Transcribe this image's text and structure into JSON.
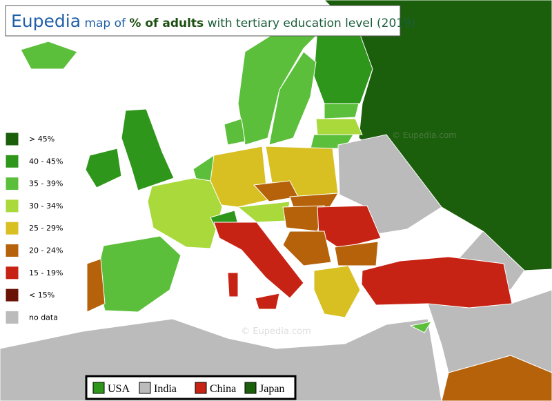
{
  "header": {
    "brand": "Eupedia",
    "title_pre": "map of",
    "title_bold": "% of adults",
    "title_post": "with tertiary education level (2019)"
  },
  "legend": {
    "items": [
      {
        "label": "> 45%",
        "color": "#1b5e0c"
      },
      {
        "label": "40 - 45%",
        "color": "#2e961a"
      },
      {
        "label": "35 - 39%",
        "color": "#5cbf3c"
      },
      {
        "label": "30 - 34%",
        "color": "#a9d93a"
      },
      {
        "label": "25 - 29%",
        "color": "#d8c023"
      },
      {
        "label": "20 - 24%",
        "color": "#b5620b"
      },
      {
        "label": "15 - 19%",
        "color": "#c62314"
      },
      {
        "label": "< 15%",
        "color": "#6a1206"
      },
      {
        "label": "no data",
        "color": "#bbbbbb"
      }
    ]
  },
  "comparison_legend": {
    "items": [
      {
        "label": "USA",
        "color": "#2e961a"
      },
      {
        "label": "India",
        "color": "#bbbbbb"
      },
      {
        "label": "China",
        "color": "#c62314"
      },
      {
        "label": "Japan",
        "color": "#1b5e0c"
      }
    ]
  },
  "watermarks": [
    "© Eupedia.com",
    "© Eupedia.com"
  ]
}
